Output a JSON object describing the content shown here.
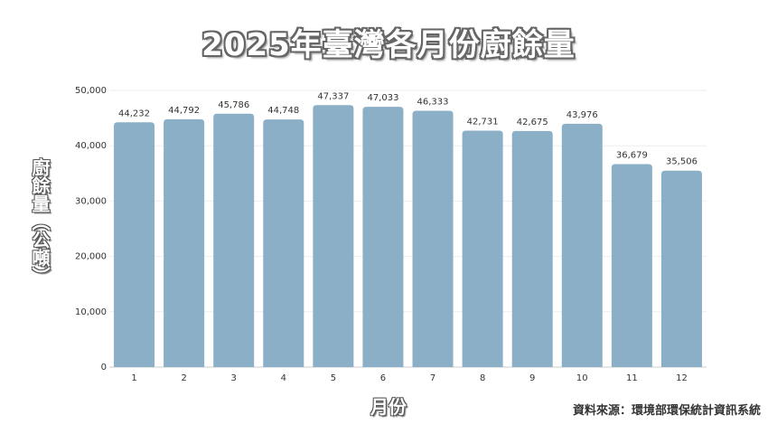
{
  "chart_data": {
    "type": "bar",
    "title": "2025年臺灣各月份廚餘量",
    "xlabel": "月份",
    "ylabel": "廚餘量（公噸）",
    "categories": [
      "1",
      "2",
      "3",
      "4",
      "5",
      "6",
      "7",
      "8",
      "9",
      "10",
      "11",
      "12"
    ],
    "values": [
      44232,
      44792,
      45786,
      44748,
      47337,
      47033,
      46333,
      42731,
      42675,
      43976,
      36679,
      35506
    ],
    "value_labels": [
      "44,232",
      "44,792",
      "45,786",
      "44,748",
      "47,337",
      "47,033",
      "46,333",
      "42,731",
      "42,675",
      "43,976",
      "36,679",
      "35,506"
    ],
    "ylim": [
      0,
      50000
    ],
    "yticks": [
      0,
      10000,
      20000,
      30000,
      40000,
      50000
    ],
    "ytick_labels": [
      "0",
      "10,000",
      "20,000",
      "30,000",
      "40,000",
      "50,000"
    ],
    "grid": true,
    "bar_color": "#8aafc6",
    "source": "資料來源：環境部環保統計資訊系統"
  }
}
